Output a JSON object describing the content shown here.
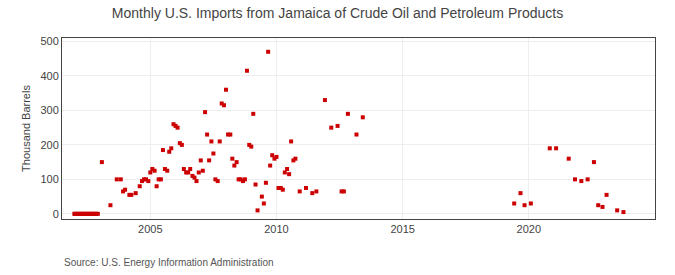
{
  "chart_data": {
    "type": "scatter",
    "title": "Monthly U.S. Imports from Jamaica of Crude Oil and Petroleum Products",
    "ylabel": "Thousand Barrels",
    "annotations": [
      "Source: U.S. Energy Information Administration"
    ],
    "xlim": [
      2001.5,
      2025.0
    ],
    "xticks": [
      2005,
      2010,
      2015,
      2020
    ],
    "ylim": [
      -15,
      510
    ],
    "yticks": [
      0,
      100,
      200,
      300,
      400,
      500
    ],
    "grid": true,
    "series": [
      {
        "type": "line",
        "color": "#990000",
        "x": [
          2001.92,
          2002.92
        ],
        "values": [
          0,
          0
        ]
      },
      {
        "type": "scatter",
        "color": "#cc0000",
        "marker": "square",
        "x": [
          2002.0,
          2002.08,
          2002.17,
          2002.25,
          2002.33,
          2002.42,
          2002.5,
          2002.58,
          2002.67,
          2002.75,
          2002.83,
          2002.92,
          2003.08,
          2003.42,
          2003.67,
          2003.83,
          2003.92,
          2004.0,
          2004.17,
          2004.25,
          2004.42,
          2004.58,
          2004.67,
          2004.75,
          2004.83,
          2004.92,
          2005.0,
          2005.08,
          2005.17,
          2005.25,
          2005.33,
          2005.42,
          2005.5,
          2005.58,
          2005.67,
          2005.75,
          2005.83,
          2005.92,
          2006.0,
          2006.08,
          2006.17,
          2006.25,
          2006.33,
          2006.42,
          2006.5,
          2006.58,
          2006.67,
          2006.75,
          2006.83,
          2006.92,
          2007.0,
          2007.08,
          2007.17,
          2007.25,
          2007.33,
          2007.42,
          2007.5,
          2007.58,
          2007.67,
          2007.75,
          2007.83,
          2007.92,
          2008.0,
          2008.08,
          2008.17,
          2008.25,
          2008.33,
          2008.42,
          2008.5,
          2008.58,
          2008.67,
          2008.75,
          2008.83,
          2008.92,
          2009.0,
          2009.08,
          2009.17,
          2009.25,
          2009.42,
          2009.5,
          2009.58,
          2009.67,
          2009.75,
          2009.83,
          2009.92,
          2010.0,
          2010.08,
          2010.17,
          2010.25,
          2010.33,
          2010.42,
          2010.5,
          2010.58,
          2010.67,
          2010.75,
          2010.92,
          2011.17,
          2011.42,
          2011.58,
          2011.92,
          2012.17,
          2012.42,
          2012.58,
          2012.67,
          2012.83,
          2013.17,
          2013.42,
          2019.42,
          2019.67,
          2019.83,
          2020.08,
          2020.83,
          2021.08,
          2021.58,
          2021.83,
          2022.08,
          2022.33,
          2022.58,
          2022.75,
          2022.92,
          2023.08,
          2023.5,
          2023.75
        ],
        "values": [
          0,
          0,
          0,
          0,
          0,
          0,
          0,
          0,
          0,
          0,
          0,
          0,
          150,
          25,
          100,
          100,
          65,
          70,
          55,
          55,
          60,
          80,
          95,
          100,
          100,
          95,
          120,
          130,
          125,
          80,
          100,
          100,
          185,
          130,
          125,
          180,
          190,
          260,
          255,
          250,
          205,
          200,
          130,
          120,
          120,
          130,
          110,
          105,
          95,
          120,
          155,
          125,
          295,
          230,
          155,
          210,
          175,
          100,
          95,
          210,
          320,
          315,
          360,
          230,
          230,
          160,
          140,
          150,
          100,
          100,
          95,
          100,
          415,
          200,
          195,
          290,
          85,
          10,
          50,
          30,
          90,
          470,
          140,
          170,
          160,
          165,
          75,
          75,
          70,
          120,
          130,
          115,
          210,
          155,
          160,
          65,
          75,
          60,
          65,
          330,
          250,
          255,
          65,
          65,
          290,
          230,
          280,
          30,
          60,
          25,
          30,
          190,
          190,
          160,
          100,
          95,
          100,
          150,
          25,
          20,
          55,
          10,
          5
        ]
      }
    ]
  }
}
